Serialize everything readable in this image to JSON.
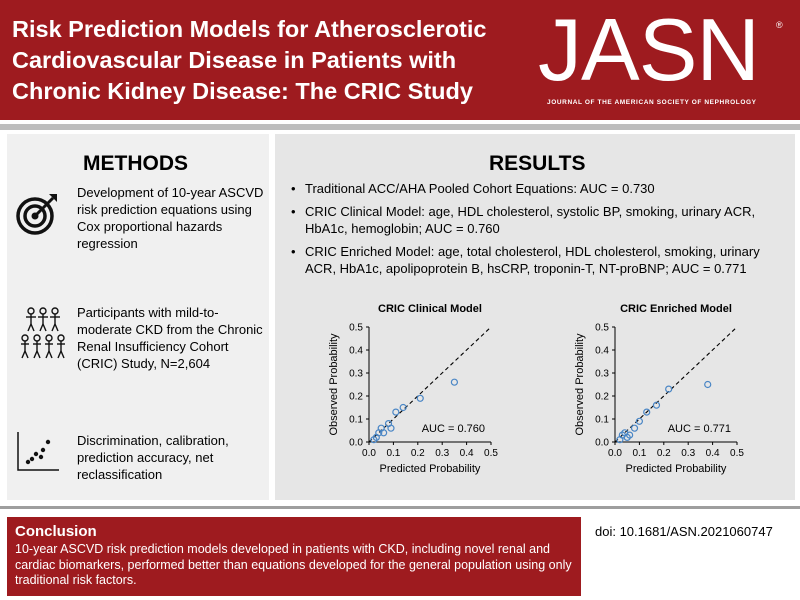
{
  "header": {
    "title": "Risk Prediction Models for Atherosclerotic Cardiovascular Disease in Patients with Chronic Kidney Disease: The CRIC Study",
    "logo": "JASN",
    "logo_mark": "®",
    "logo_subtitle": "JOURNAL OF THE AMERICAN SOCIETY OF NEPHROLOGY",
    "accent_color": "#9e1b1f"
  },
  "methods": {
    "title": "METHODS",
    "items": [
      {
        "icon": "target-icon",
        "text": "Development of 10-year ASCVD risk prediction equations using Cox proportional hazards regression"
      },
      {
        "icon": "people-icon",
        "text": "Participants with mild-to-moderate CKD from the Chronic Renal Insufficiency Cohort (CRIC) Study, N=2,604"
      },
      {
        "icon": "scatter-plot-icon",
        "text": "Discrimination, calibration, prediction accuracy, net reclassification"
      }
    ]
  },
  "results": {
    "title": "RESULTS",
    "bullets": [
      "Traditional ACC/AHA Pooled Cohort Equations: AUC = 0.730",
      "CRIC Clinical Model: age, HDL cholesterol, systolic BP, smoking, urinary ACR, HbA1c, hemoglobin; AUC = 0.760",
      "CRIC Enriched Model: age, total cholesterol, HDL cholesterol, smoking, urinary ACR, HbA1c, apolipoprotein B, hsCRP, troponin-T, NT-proBNP; AUC = 0.771"
    ]
  },
  "chart_data": [
    {
      "type": "scatter",
      "title": "CRIC Clinical Model",
      "xlabel": "Predicted Probability",
      "ylabel": "Observed Probability",
      "xlim": [
        0,
        0.5
      ],
      "ylim": [
        0,
        0.5
      ],
      "xticks": [
        "0.0",
        "0.1",
        "0.2",
        "0.3",
        "0.4",
        "0.5"
      ],
      "yticks": [
        "0.0",
        "0.1",
        "0.2",
        "0.3",
        "0.4",
        "0.5"
      ],
      "annotation": "AUC = 0.760",
      "reference_line": "y = x",
      "points": [
        [
          0.02,
          0.01
        ],
        [
          0.03,
          0.02
        ],
        [
          0.04,
          0.04
        ],
        [
          0.05,
          0.06
        ],
        [
          0.06,
          0.04
        ],
        [
          0.08,
          0.08
        ],
        [
          0.09,
          0.06
        ],
        [
          0.11,
          0.13
        ],
        [
          0.14,
          0.15
        ],
        [
          0.21,
          0.19
        ],
        [
          0.35,
          0.26
        ]
      ]
    },
    {
      "type": "scatter",
      "title": "CRIC Enriched Model",
      "xlabel": "Predicted Probability",
      "ylabel": "Observed Probability",
      "xlim": [
        0,
        0.5
      ],
      "ylim": [
        0,
        0.5
      ],
      "xticks": [
        "0.0",
        "0.1",
        "0.2",
        "0.3",
        "0.4",
        "0.5"
      ],
      "yticks": [
        "0.0",
        "0.1",
        "0.2",
        "0.3",
        "0.4",
        "0.5"
      ],
      "annotation": "AUC = 0.771",
      "reference_line": "y = x",
      "points": [
        [
          0.02,
          0.01
        ],
        [
          0.03,
          0.03
        ],
        [
          0.04,
          0.04
        ],
        [
          0.05,
          0.02
        ],
        [
          0.06,
          0.03
        ],
        [
          0.08,
          0.06
        ],
        [
          0.1,
          0.09
        ],
        [
          0.13,
          0.13
        ],
        [
          0.17,
          0.16
        ],
        [
          0.22,
          0.23
        ],
        [
          0.38,
          0.25
        ]
      ]
    }
  ],
  "conclusion": {
    "title": "Conclusion",
    "text": "10-year ASCVD risk prediction models developed in patients with CKD, including novel renal and cardiac biomarkers, performed better than equations developed for the general population using only traditional risk factors."
  },
  "doi": "doi: 10.1681/ASN.2021060747"
}
